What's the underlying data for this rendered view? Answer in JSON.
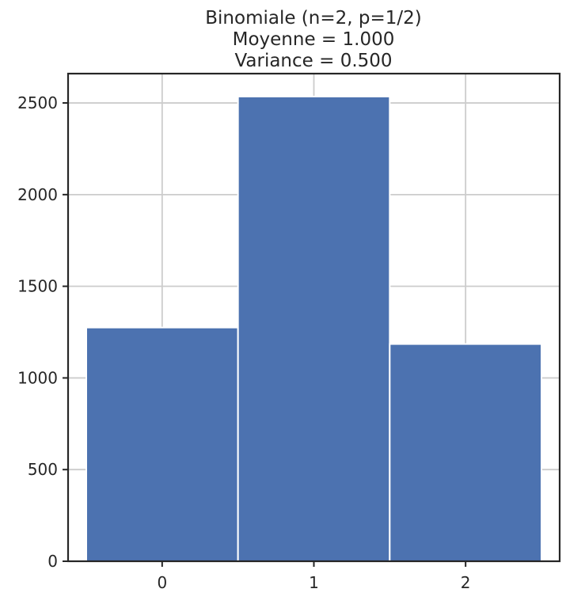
{
  "chart_data": {
    "type": "bar",
    "title_lines": [
      "Binomiale (n=2, p=1/2)",
      "Moyenne =  1.000",
      "Variance =  0.500"
    ],
    "xlabel": "",
    "ylabel": "",
    "categories": [
      "0",
      "1",
      "2"
    ],
    "x": [
      0,
      1,
      2
    ],
    "values": [
      1275,
      2535,
      1185
    ],
    "xlim": [
      -0.62,
      2.62
    ],
    "ylim": [
      0,
      2660
    ],
    "yticks": [
      0,
      500,
      1000,
      1500,
      2000,
      2500
    ],
    "grid": true,
    "legend": "none"
  },
  "colors": {
    "bar": "#4c72b0",
    "bar_edge": "#ffffff",
    "grid": "#cccccc",
    "axis": "#262626",
    "text": "#262626"
  }
}
